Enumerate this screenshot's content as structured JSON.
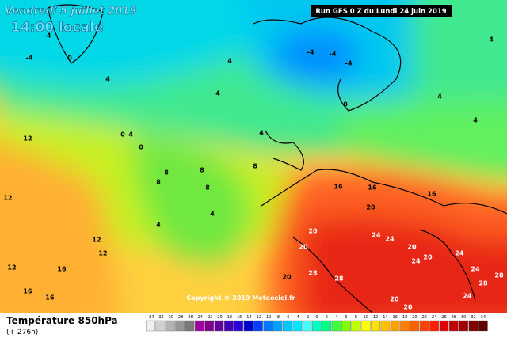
{
  "map": {
    "valid_date": "Vendredi 5 juillet 2019",
    "local_time": "14:00 locale",
    "run": "Run GFS 0 Z du Lundi 24 juin 2019",
    "copyright": "Copyright © 2019 Meteociel.fr",
    "parameter": "Température 850hPa",
    "lead_time": "(+ 276h)",
    "contour_labels": [
      0,
      -4,
      -4,
      4,
      4,
      -4,
      -4,
      -4,
      4,
      0,
      4,
      0,
      0,
      4,
      8,
      8,
      8,
      8,
      4,
      4,
      8,
      12,
      12,
      12,
      12,
      16,
      16,
      16,
      12,
      16,
      16,
      16,
      20,
      20,
      24,
      24,
      20,
      28,
      24,
      24,
      28,
      20,
      20,
      24,
      20,
      28,
      20,
      20,
      24,
      28,
      4,
      4,
      4
    ],
    "scale": {
      "labels": [
        -34,
        -32,
        -30,
        -28,
        -26,
        -24,
        -22,
        -20,
        -18,
        -16,
        -14,
        -12,
        -10,
        -8,
        -6,
        -4,
        -2,
        0,
        2,
        4,
        6,
        8,
        10,
        12,
        14,
        16,
        18,
        20,
        22,
        24,
        26,
        28,
        30,
        32,
        34
      ],
      "colors": [
        "#f0f0f0",
        "#d0d0d0",
        "#b4b4b4",
        "#969696",
        "#7a7a7a",
        "#a000a0",
        "#80008c",
        "#6000a0",
        "#4000b4",
        "#2800d8",
        "#0000c8",
        "#0040ff",
        "#0078ff",
        "#00a0ff",
        "#00c8ff",
        "#00e8ff",
        "#40ffff",
        "#00ffc0",
        "#00ff80",
        "#40ff40",
        "#80ff00",
        "#c0ff00",
        "#ffff00",
        "#ffe000",
        "#ffc000",
        "#ffa000",
        "#ff8000",
        "#ff6000",
        "#ff4000",
        "#ff2000",
        "#e00000",
        "#c00000",
        "#a00000",
        "#800000",
        "#600000"
      ]
    }
  }
}
